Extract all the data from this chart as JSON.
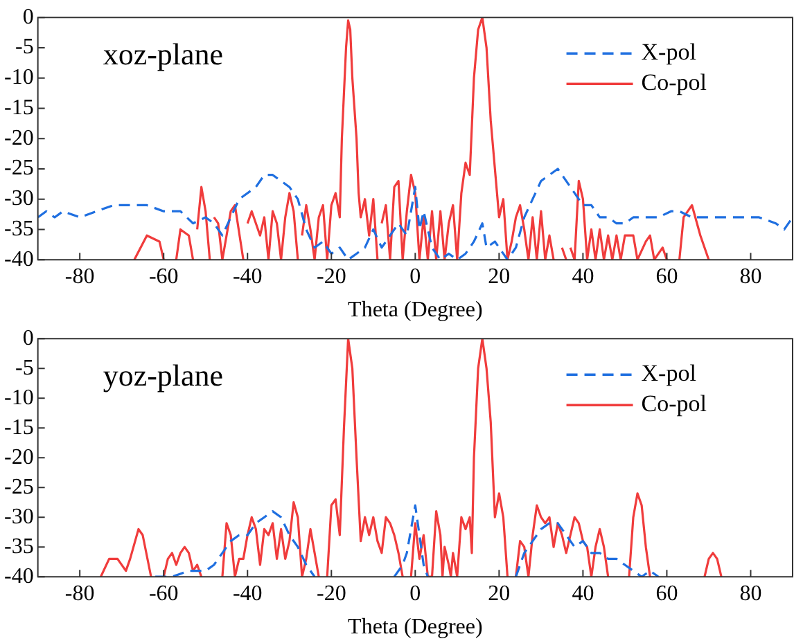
{
  "chart_data": [
    {
      "type": "line",
      "xlabel": "Theta (Degree)",
      "annotations": [
        "xoz-plane"
      ],
      "xlim": [
        -90,
        90
      ],
      "xticks": [
        -80,
        -60,
        -40,
        -20,
        0,
        20,
        40,
        60,
        80
      ],
      "ylim": [
        -40,
        0
      ],
      "yticks": [
        0,
        -5,
        -10,
        -15,
        -20,
        -25,
        -30,
        -35,
        -40
      ],
      "grid": false,
      "legend": "top right",
      "marker": "none",
      "series": [
        {
          "name": "X-pol",
          "color": "#1f6fe0",
          "line_style": "dashed",
          "x": [
            -90,
            -88,
            -86,
            -84,
            -80,
            -76,
            -72,
            -68,
            -64,
            -60,
            -56,
            -53,
            -50,
            -48,
            -46,
            -44,
            -42,
            -40,
            -38,
            -36,
            -34,
            -32,
            -30,
            -28,
            -26,
            -24,
            -22,
            -20,
            -18,
            -16,
            -14,
            -12,
            -10,
            -8,
            -6,
            -4,
            -2,
            0,
            1,
            2,
            4,
            6,
            8,
            10,
            12,
            14,
            16,
            17,
            19,
            21,
            22,
            24,
            26,
            28,
            30,
            32,
            34,
            36,
            38,
            40,
            42,
            44,
            46,
            48,
            50,
            52,
            55,
            58,
            61,
            63,
            66,
            70,
            74,
            78,
            82,
            86,
            88,
            90
          ],
          "values": [
            -33,
            -32,
            -33,
            -32,
            -33,
            -32,
            -31,
            -31,
            -31,
            -32,
            -32,
            -34,
            -33,
            -34,
            -36,
            -33,
            -30,
            -29,
            -28,
            -26,
            -26,
            -27,
            -28,
            -30,
            -35,
            -38,
            -37,
            -39,
            -38,
            -40,
            -39,
            -38,
            -35,
            -38,
            -36,
            -34,
            -36,
            -28,
            -35,
            -32,
            -38,
            -40,
            -39,
            -40,
            -39,
            -37,
            -34,
            -38,
            -37,
            -39,
            -40,
            -38,
            -33,
            -30,
            -27,
            -26,
            -25,
            -27,
            -29,
            -31,
            -31,
            -33,
            -33,
            -34,
            -34,
            -33,
            -33,
            -33,
            -32,
            -32,
            -33,
            -33,
            -33,
            -33,
            -33,
            -34,
            -35,
            -33
          ]
        },
        {
          "name": "Co-pol",
          "color": "#f03c3c",
          "line_style": "solid",
          "x": [
            -67,
            -64,
            -61,
            -60,
            -59,
            -57,
            -56,
            -54,
            -53,
            -52.5,
            -52,
            -51,
            -50,
            -49,
            -48.5,
            -48,
            -47,
            -46,
            -44,
            -43,
            -41,
            -40.5,
            -40,
            -39,
            -37,
            -36,
            -35,
            -34,
            -33,
            -32,
            -31,
            -30,
            -29,
            -28,
            -27.5,
            -27,
            -26,
            -25,
            -24,
            -23,
            -22,
            -21,
            -20,
            -19,
            -18,
            -17.5,
            -16.5,
            -16,
            -15.5,
            -15,
            -14,
            -13.5,
            -13,
            -12,
            -11,
            -10,
            -9,
            -8.5,
            -8,
            -7,
            -6,
            -5,
            -4,
            -3,
            -2,
            -1,
            0,
            1,
            2,
            3,
            4,
            5,
            6,
            7,
            8,
            9,
            10,
            11,
            12,
            13,
            14,
            15,
            16,
            17,
            18,
            19,
            20,
            21,
            22,
            23,
            24,
            25,
            26,
            27,
            28,
            29,
            30,
            31,
            32,
            33,
            34,
            35,
            36,
            36.5,
            37,
            38,
            39,
            40,
            41,
            42,
            43,
            44,
            45,
            46,
            47,
            48,
            49,
            50,
            52,
            53,
            55,
            56,
            57,
            59,
            60,
            61,
            63,
            64,
            66,
            68,
            70
          ],
          "values": [
            -40,
            -36,
            -37,
            -40,
            null,
            -40,
            -35,
            -36,
            -40,
            null,
            -35,
            -28,
            -32,
            -40,
            null,
            -33,
            -34,
            -40,
            -32,
            -31,
            -40,
            null,
            -34,
            -32,
            -36,
            -33,
            -40,
            -32,
            -34,
            -40,
            -33,
            -29,
            -32,
            -40,
            null,
            -36,
            -31,
            -35,
            -40,
            -33,
            -31,
            -40,
            -31,
            -29,
            -33,
            -20,
            -5,
            -0.5,
            -2,
            -10,
            -20,
            -29,
            -33,
            -30,
            -36,
            -30,
            -40,
            null,
            -34,
            -31,
            -40,
            -28,
            -27,
            -40,
            -32,
            -26,
            -29,
            -40,
            -33,
            -40,
            -32,
            -40,
            -32,
            -40,
            -34,
            -31,
            -40,
            -29,
            -24,
            -26,
            -10,
            -2,
            0,
            -5,
            -17,
            -25,
            -33,
            -30,
            -40,
            -37,
            -33,
            -31,
            -35,
            -40,
            -33,
            -40,
            -32,
            -40,
            -36,
            -40,
            null,
            -38,
            -40,
            null,
            -38,
            -40,
            -27,
            -30,
            -40,
            -35,
            -40,
            -35,
            -40,
            -36,
            -40,
            -36,
            -40,
            -36,
            -36,
            -40,
            -37,
            -36,
            -40,
            -38,
            -40,
            null,
            -40,
            -33,
            -31,
            -36,
            -40
          ]
        }
      ]
    },
    {
      "type": "line",
      "xlabel": "Theta (Degree)",
      "annotations": [
        "yoz-plane"
      ],
      "xlim": [
        -90,
        90
      ],
      "xticks": [
        -80,
        -60,
        -40,
        -20,
        0,
        20,
        40,
        60,
        80
      ],
      "ylim": [
        -40,
        0
      ],
      "yticks": [
        0,
        -5,
        -10,
        -15,
        -20,
        -25,
        -30,
        -35,
        -40
      ],
      "grid": false,
      "legend": "top right",
      "marker": "none",
      "series": [
        {
          "name": "X-pol",
          "color": "#1f6fe0",
          "line_style": "dashed",
          "x": [
            -62,
            -58,
            -54,
            -52,
            -50,
            -48,
            -46,
            -44,
            -42,
            -40,
            -38,
            -36,
            -34,
            -32,
            -30,
            -28,
            -26,
            -24,
            -23,
            -5,
            -3,
            -2,
            0,
            1,
            2,
            3,
            4,
            24,
            26,
            28,
            30,
            32,
            34,
            36,
            38,
            40,
            42,
            44,
            46,
            48,
            50,
            52,
            54,
            56,
            58
          ],
          "values": [
            -40,
            -40,
            -39,
            -39,
            -39,
            -38,
            -36,
            -34,
            -33,
            -33,
            -31,
            -30,
            -29,
            -30,
            -33,
            -35,
            -38,
            -40,
            null,
            -40,
            -38,
            -36,
            -28,
            -33,
            -38,
            -40,
            null,
            -40,
            -36,
            -34,
            -32,
            -31,
            -31,
            -33,
            -35,
            -34,
            -36,
            -36,
            -37,
            -37,
            -38,
            -39,
            -40,
            -39,
            -40
          ]
        },
        {
          "name": "Co-pol",
          "color": "#f03c3c",
          "line_style": "solid",
          "x": [
            -75,
            -73,
            -71,
            -69,
            -68,
            -66,
            -65,
            -63,
            -62,
            -60,
            -59,
            -58,
            -57,
            -56,
            -55,
            -54,
            -53,
            -52,
            -51,
            -50,
            -46,
            -45,
            -44,
            -43,
            -42,
            -41,
            -40,
            -39,
            -38,
            -37,
            -36,
            -35,
            -34,
            -33,
            -32,
            -31,
            -30,
            -29,
            -28,
            -27,
            -26,
            -25,
            -24,
            -23,
            -22,
            -21,
            -20,
            -19,
            -18,
            -17,
            -16,
            -15,
            -14,
            -13,
            -12,
            -11,
            -10,
            -9,
            -8,
            -7,
            -6,
            -5,
            -4,
            -3,
            -2,
            -1,
            0,
            1,
            2,
            3,
            4,
            5,
            6,
            6.5,
            7,
            8,
            8.5,
            9,
            10,
            11,
            12,
            13,
            13.5,
            14,
            15,
            16,
            17,
            18,
            19,
            20,
            21,
            22,
            23,
            24,
            25,
            26,
            27,
            28,
            29,
            30,
            31,
            32,
            33,
            34,
            35,
            36,
            37,
            38,
            39,
            40,
            41,
            42,
            43,
            44,
            45,
            46,
            47,
            51,
            52,
            53,
            54,
            55,
            56,
            57,
            69,
            70,
            71,
            72,
            73
          ],
          "values": [
            -40,
            -37,
            -37,
            -39,
            -37,
            -32,
            -33,
            -40,
            null,
            -40,
            -37,
            -36,
            -38,
            -36,
            -35,
            -36,
            -39,
            -38,
            -40,
            null,
            -40,
            -31,
            -33,
            -40,
            -37,
            -37,
            -33,
            -30,
            -32,
            -38,
            -32,
            -33,
            -31,
            -37,
            -32,
            -37,
            -34,
            -27.5,
            -30,
            -40,
            -37,
            -32,
            -36,
            -40,
            null,
            -40,
            -28,
            -27,
            -33,
            -15,
            0,
            -5,
            -20,
            -34,
            -30,
            -33,
            -30,
            -34,
            -36,
            -30,
            -31,
            -33,
            -36,
            -40,
            null,
            -40,
            -31,
            -37,
            -33,
            -40,
            -40,
            -29,
            -33,
            -40,
            -35,
            -38,
            -40,
            -36,
            -40,
            -30,
            -32,
            -30,
            -36,
            -20,
            -5,
            0,
            -5,
            -14,
            -30,
            -26,
            -30,
            -40,
            null,
            -40,
            -34,
            -35,
            -40,
            -33,
            -28,
            -30,
            -31,
            -30,
            -35,
            -31,
            -33,
            -36,
            -33,
            -30,
            -31,
            -34,
            -35,
            -40,
            -35,
            -32,
            -35,
            -40,
            null,
            -40,
            -30,
            -26,
            -28,
            -35,
            -40,
            null,
            -40,
            -37,
            -36,
            -37,
            -40
          ]
        }
      ]
    }
  ]
}
